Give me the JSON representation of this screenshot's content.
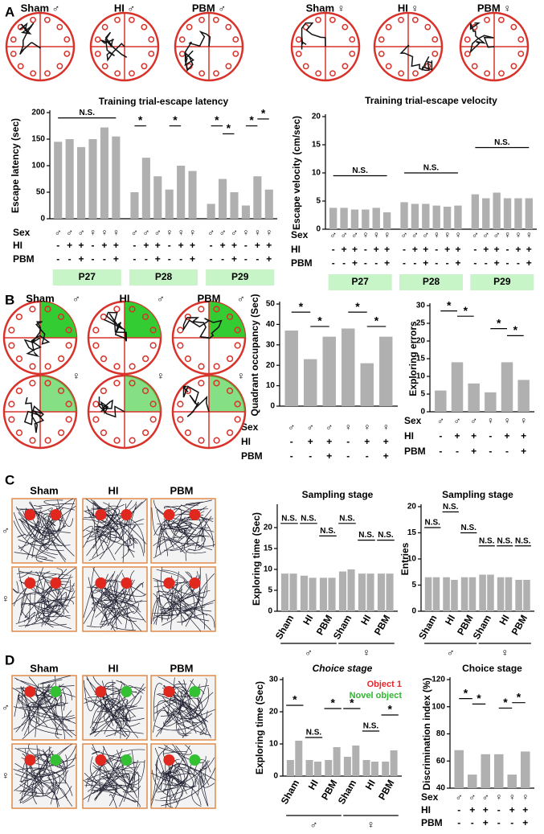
{
  "figure": {
    "panel_letters": [
      "A",
      "B",
      "C",
      "D"
    ],
    "a_labels": [
      "Sham ♂",
      "HI ♂",
      "PBM ♂",
      "Sham ♀",
      "HI ♀",
      "PBM ♀"
    ],
    "b_labels": [
      "Sham",
      "HI",
      "PBM"
    ],
    "b_sex": [
      "♂",
      "♂",
      "♂",
      "♀",
      "♀",
      "♀"
    ],
    "c_labels": [
      "Sham",
      "HI",
      "PBM"
    ],
    "c_sex": [
      "♂",
      "♀"
    ],
    "d_labels": [
      "Sham",
      "HI",
      "PBM"
    ],
    "d_sex": [
      "♂",
      "♀"
    ]
  },
  "chart_data": [
    {
      "type": "bar",
      "title": "Training trial-escape latency",
      "y_label": "Escape latency (sec)",
      "ylim": [
        0,
        200
      ],
      "yticks": [
        0,
        50,
        100,
        150,
        200
      ],
      "color": "#b0b0b0",
      "values": [
        145,
        150,
        135,
        150,
        172,
        155,
        50,
        115,
        80,
        55,
        100,
        90,
        28,
        75,
        50,
        25,
        80,
        55
      ],
      "annotations": [
        "N.S.",
        "*",
        "*",
        "*",
        "*",
        "*",
        "*"
      ],
      "condition_rows": {
        "labels": [
          "Sex",
          "HI",
          "PBM"
        ],
        "rows": [
          [
            "♂",
            "♂",
            "♂",
            "♀",
            "♀",
            "♀",
            "♂",
            "♂",
            "♂",
            "♀",
            "♀",
            "♀",
            "♂",
            "♂",
            "♂",
            "♀",
            "♀",
            "♀"
          ],
          [
            "-",
            "+",
            "+",
            "-",
            "+",
            "+",
            "-",
            "+",
            "+",
            "-",
            "+",
            "+",
            "-",
            "+",
            "+",
            "-",
            "+",
            "+"
          ],
          [
            "-",
            "-",
            "+",
            "-",
            "-",
            "+",
            "-",
            "-",
            "+",
            "-",
            "-",
            "+",
            "-",
            "-",
            "+",
            "-",
            "-",
            "+"
          ]
        ]
      },
      "groups": [
        "P27",
        "P28",
        "P29"
      ]
    },
    {
      "type": "bar",
      "title": "Training trial-escape velocity",
      "y_label": "Escape velocity (cm/sec)",
      "ylim": [
        0,
        20
      ],
      "yticks": [
        0,
        5,
        10,
        15,
        20
      ],
      "color": "#b0b0b0",
      "values": [
        3.8,
        3.8,
        3.5,
        3.5,
        3.8,
        3.0,
        4.8,
        4.5,
        4.5,
        4.2,
        4.0,
        4.2,
        6.2,
        5.5,
        6.5,
        5.5,
        5.5,
        5.5
      ],
      "annotations": [
        "N.S.",
        "N.S.",
        "N.S."
      ],
      "condition_rows": {
        "labels": [
          "Sex",
          "HI",
          "PBM"
        ],
        "rows": [
          [
            "♂",
            "♂",
            "♂",
            "♀",
            "♀",
            "♀",
            "♂",
            "♂",
            "♂",
            "♀",
            "♀",
            "♀",
            "♂",
            "♂",
            "♂",
            "♀",
            "♀",
            "♀"
          ],
          [
            "-",
            "+",
            "+",
            "-",
            "+",
            "+",
            "-",
            "+",
            "+",
            "-",
            "+",
            "+",
            "-",
            "+",
            "+",
            "-",
            "+",
            "+"
          ],
          [
            "-",
            "-",
            "+",
            "-",
            "-",
            "+",
            "-",
            "-",
            "+",
            "-",
            "-",
            "+",
            "-",
            "-",
            "+",
            "-",
            "-",
            "+"
          ]
        ]
      },
      "groups": [
        "P27",
        "P28",
        "P29"
      ]
    },
    {
      "type": "bar",
      "y_label": "Quadrant occupancy (Sec)",
      "ylim": [
        0,
        50
      ],
      "yticks": [
        0,
        10,
        20,
        30,
        40,
        50
      ],
      "color": "#b0b0b0",
      "values": [
        37,
        23,
        34,
        38,
        21,
        34
      ],
      "annotations": [
        "*",
        "*",
        "*",
        "*"
      ],
      "condition_rows": {
        "labels": [
          "Sex",
          "HI",
          "PBM"
        ],
        "rows": [
          [
            "♂",
            "♂",
            "♂",
            "♀",
            "♀",
            "♀"
          ],
          [
            "-",
            "+",
            "+",
            "-",
            "+",
            "+"
          ],
          [
            "-",
            "-",
            "+",
            "-",
            "-",
            "+"
          ]
        ]
      }
    },
    {
      "type": "bar",
      "y_label": "Exploring errors",
      "ylim": [
        0,
        30
      ],
      "yticks": [
        0,
        5,
        10,
        15,
        20,
        25,
        30
      ],
      "color": "#b0b0b0",
      "values": [
        6,
        14,
        8,
        5.5,
        14,
        9
      ],
      "annotations": [
        "*",
        "*",
        "*",
        "*"
      ],
      "condition_rows": {
        "labels": [
          "Sex",
          "HI",
          "PBM"
        ],
        "rows": [
          [
            "♂",
            "♂",
            "♂",
            "♀",
            "♀",
            "♀"
          ],
          [
            "-",
            "+",
            "+",
            "-",
            "+",
            "+"
          ],
          [
            "-",
            "-",
            "+",
            "-",
            "-",
            "+"
          ]
        ]
      }
    },
    {
      "type": "bar",
      "title": "Sampling stage",
      "y_label": "Exploring time (Sec)",
      "ylim": [
        0,
        25
      ],
      "yticks": [
        0,
        5,
        10,
        15,
        20
      ],
      "color": "#b0b0b0",
      "categories": [
        "Sham",
        "HI",
        "PBM",
        "Sham",
        "HI",
        "PBM"
      ],
      "sex_groups": [
        "♂",
        "♀"
      ],
      "series": [
        {
          "values": [
            9,
            8.5,
            8,
            9.5,
            9,
            9
          ]
        },
        {
          "values": [
            9,
            8,
            8,
            10,
            9,
            9
          ]
        }
      ],
      "annotations": [
        "N.S.",
        "N.S.",
        "N.S.",
        "N.S.",
        "N.S.",
        "N.S."
      ]
    },
    {
      "type": "bar",
      "title": "Sampling stage",
      "y_label": "Entries",
      "ylim": [
        0,
        20
      ],
      "yticks": [
        0,
        5,
        10,
        15,
        20
      ],
      "color": "#b0b0b0",
      "categories": [
        "Sham",
        "HI",
        "PBM",
        "Sham",
        "HI",
        "PBM"
      ],
      "sex_groups": [
        "♂",
        "♀"
      ],
      "series": [
        {
          "values": [
            6.5,
            6.5,
            6.5,
            7,
            6.5,
            6
          ]
        },
        {
          "values": [
            6.5,
            6,
            6.5,
            7,
            6.5,
            6
          ]
        }
      ],
      "annotations": [
        "N.S.",
        "N.S.",
        "N.S.",
        "N.S.",
        "N.S.",
        "N.S."
      ]
    },
    {
      "type": "bar",
      "title": "Choice stage",
      "y_label": "Exploring time (Sec)",
      "ylim": [
        0,
        30
      ],
      "yticks": [
        0,
        10,
        20,
        30
      ],
      "color": "#b0b0b0",
      "categories": [
        "Sham",
        "HI",
        "PBM",
        "Sham",
        "HI",
        "PBM"
      ],
      "sex_groups": [
        "♂",
        "♀"
      ],
      "series": [
        {
          "name": "Object 1",
          "color": "#e8262a",
          "values": [
            5,
            5,
            5,
            6,
            5,
            4.5
          ]
        },
        {
          "name": "Novel object",
          "color": "#2eb82e",
          "values": [
            11,
            4.5,
            9,
            9.5,
            4.5,
            8
          ]
        }
      ],
      "annotations": [
        "*",
        "N.S.",
        "*",
        "*",
        "N.S.",
        "*"
      ]
    },
    {
      "type": "bar",
      "title": "Choice stage",
      "y_label": "Discrimination index (%)",
      "ylim": [
        40,
        120
      ],
      "yticks": [
        40,
        60,
        80,
        100,
        120
      ],
      "color": "#b0b0b0",
      "values": [
        68,
        50,
        65,
        65,
        50,
        67
      ],
      "annotations": [
        "*",
        "*",
        "*",
        "*"
      ],
      "condition_rows": {
        "labels": [
          "Sex",
          "HI",
          "PBM"
        ],
        "rows": [
          [
            "♂",
            "♂",
            "♂",
            "♀",
            "♀",
            "♀"
          ],
          [
            "-",
            "+",
            "+",
            "-",
            "+",
            "+"
          ],
          [
            "-",
            "-",
            "+",
            "-",
            "-",
            "+"
          ]
        ]
      }
    }
  ]
}
